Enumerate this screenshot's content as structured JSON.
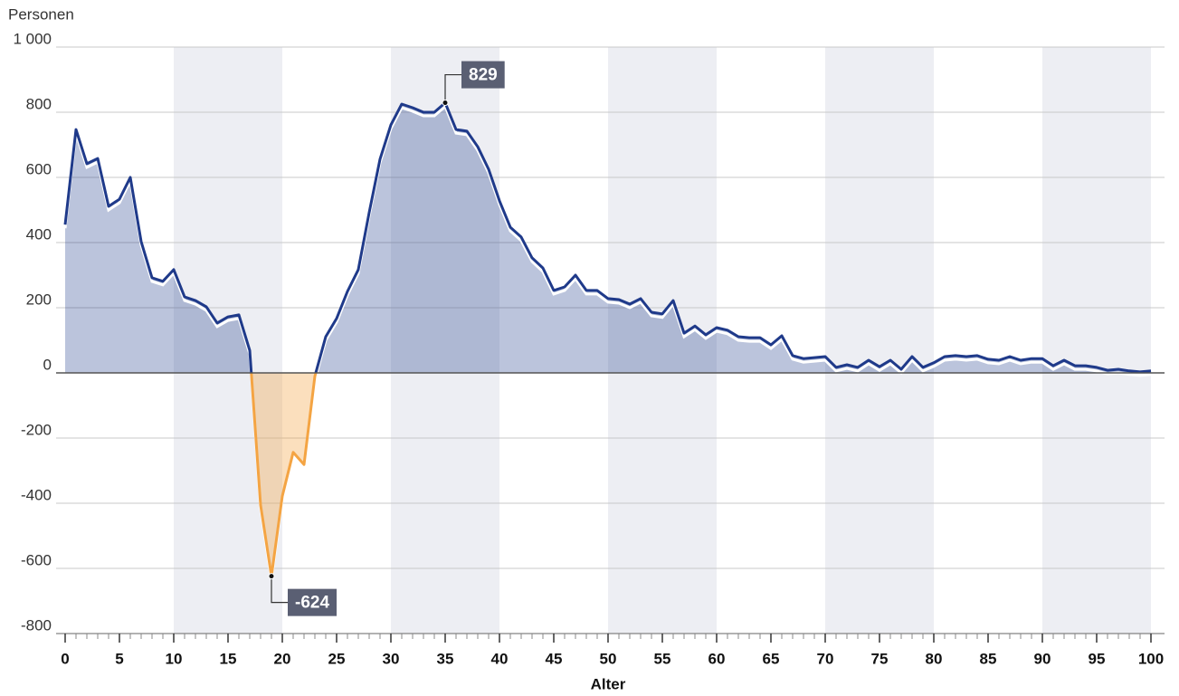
{
  "chart_data": {
    "type": "area",
    "y_label": "Personen",
    "x_label": "Alter",
    "x": [
      0,
      1,
      2,
      3,
      4,
      5,
      6,
      7,
      8,
      9,
      10,
      11,
      12,
      13,
      14,
      15,
      16,
      17,
      18,
      19,
      20,
      21,
      22,
      23,
      24,
      25,
      26,
      27,
      28,
      29,
      30,
      31,
      32,
      33,
      34,
      35,
      36,
      37,
      38,
      39,
      40,
      41,
      42,
      43,
      44,
      45,
      46,
      47,
      48,
      49,
      50,
      51,
      52,
      53,
      54,
      55,
      56,
      57,
      58,
      59,
      60,
      61,
      62,
      63,
      64,
      65,
      66,
      67,
      68,
      69,
      70,
      71,
      72,
      73,
      74,
      75,
      76,
      77,
      78,
      79,
      80,
      81,
      82,
      83,
      84,
      85,
      86,
      87,
      88,
      89,
      90,
      91,
      92,
      93,
      94,
      95,
      96,
      97,
      98,
      99,
      100
    ],
    "series": [
      {
        "color": "#1f3a8a",
        "negative_color": "#f4a443",
        "values": [
          455,
          747,
          642,
          658,
          511,
          533,
          600,
          403,
          292,
          281,
          317,
          233,
          222,
          203,
          153,
          172,
          178,
          69,
          -406,
          -624,
          -378,
          -244,
          -281,
          -10,
          111,
          167,
          250,
          317,
          492,
          656,
          761,
          825,
          814,
          800,
          800,
          829,
          747,
          742,
          694,
          625,
          528,
          447,
          417,
          353,
          322,
          253,
          264,
          300,
          253,
          253,
          228,
          225,
          211,
          228,
          186,
          181,
          222,
          122,
          144,
          117,
          139,
          131,
          111,
          108,
          108,
          86,
          114,
          53,
          44,
          47,
          50,
          17,
          25,
          17,
          39,
          19,
          39,
          11,
          50,
          17,
          31,
          50,
          53,
          50,
          53,
          42,
          39,
          50,
          39,
          44,
          44,
          22,
          39,
          22,
          22,
          17,
          8,
          11,
          6,
          3,
          6
        ]
      }
    ],
    "annotations": [
      {
        "x": 35,
        "y": 829
      },
      {
        "x": 19,
        "y": -624
      }
    ],
    "xlim": [
      0,
      100
    ],
    "xticks": [
      0,
      5,
      10,
      15,
      20,
      25,
      30,
      35,
      40,
      45,
      50,
      55,
      60,
      65,
      70,
      75,
      80,
      85,
      90,
      95,
      100
    ],
    "ylim": [
      -800,
      1000
    ],
    "yticks": [
      -800,
      -600,
      -400,
      -200,
      0,
      200,
      400,
      600,
      800,
      {
        "value": 1000,
        "label": "1 000"
      }
    ],
    "grid": true,
    "alternating_bands": true
  }
}
